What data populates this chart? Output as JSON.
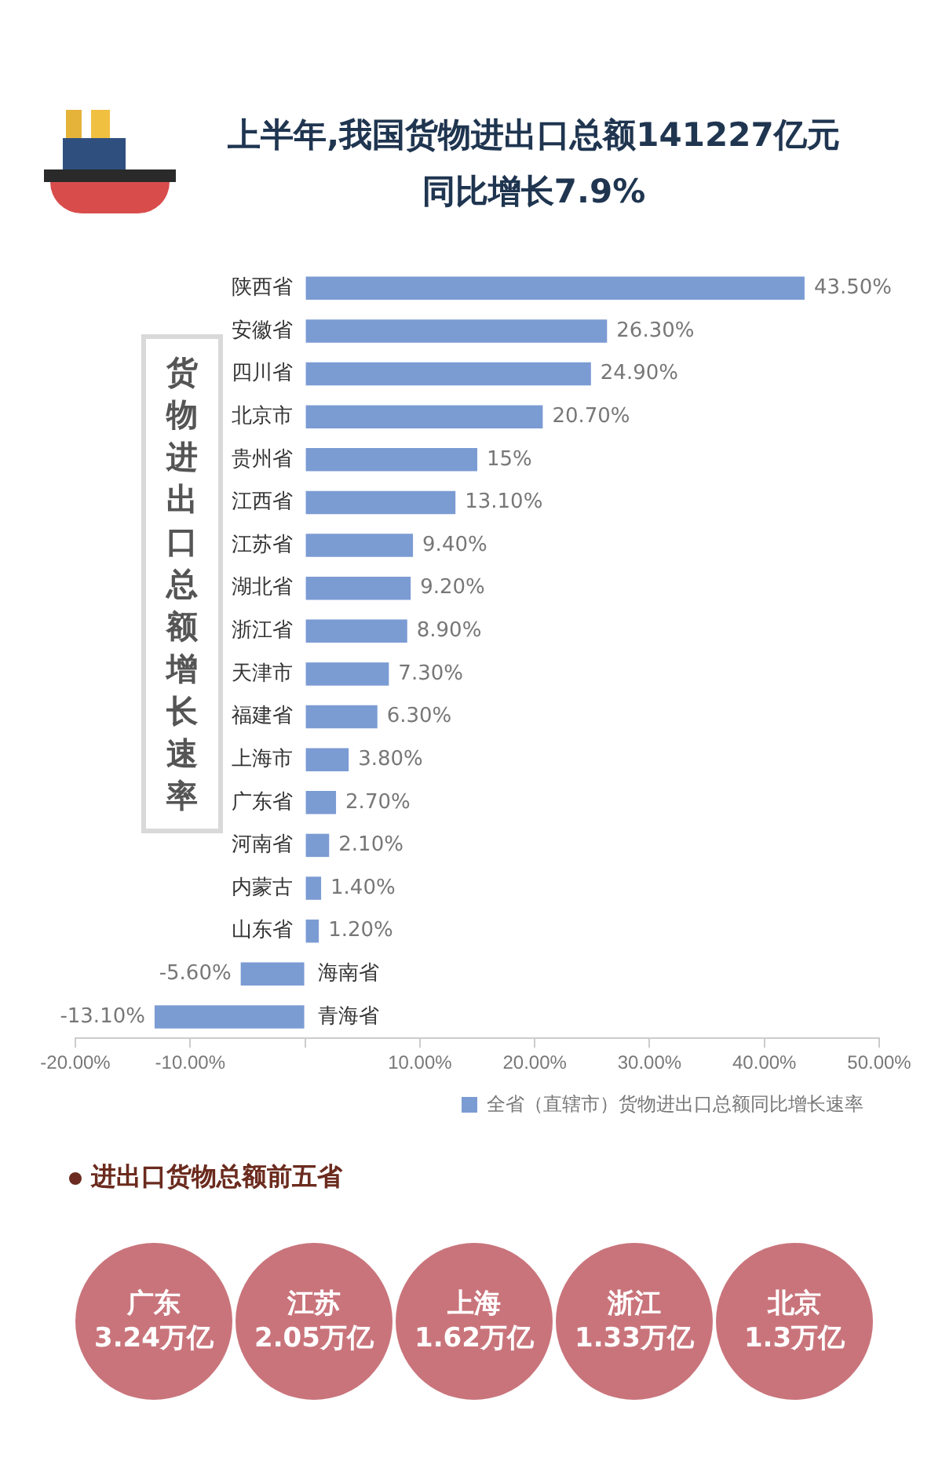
{
  "chart_data": [
    {
      "type": "bar",
      "title": "上半年,我国货物进出口总额141227亿元同比增长7.9%",
      "ylabel": "货物进出口总额增长速率",
      "orientation": "horizontal",
      "categories": [
        "陕西省",
        "安徽省",
        "四川省",
        "北京市",
        "贵州省",
        "江西省",
        "江苏省",
        "湖北省",
        "浙江省",
        "天津市",
        "福建省",
        "上海市",
        "广东省",
        "河南省",
        "内蒙古",
        "山东省",
        "海南省",
        "青海省"
      ],
      "series": [
        {
          "name": "全省（直辖市）货物进出口总额同比增长速率",
          "color": "#7b9bd3",
          "values": [
            43.5,
            26.3,
            24.9,
            20.7,
            15,
            13.1,
            9.4,
            9.2,
            8.9,
            7.3,
            6.3,
            3.8,
            2.7,
            2.1,
            1.4,
            1.2,
            -5.6,
            -13.1
          ],
          "value_labels": [
            "43.50%",
            "26.30%",
            "24.90%",
            "20.70%",
            "15%",
            "13.10%",
            "9.40%",
            "9.20%",
            "8.90%",
            "7.30%",
            "6.30%",
            "3.80%",
            "2.70%",
            "2.10%",
            "1.40%",
            "1.20%",
            "-5.60%",
            "-13.10%"
          ]
        }
      ],
      "xlim": [
        -20,
        50
      ],
      "xticks": [
        {
          "value": -20,
          "label": "-20.00%"
        },
        {
          "value": -10,
          "label": "-10.00%"
        },
        {
          "value": 0,
          "label": null
        },
        {
          "value": 10,
          "label": "10.00%"
        },
        {
          "value": 20,
          "label": "20.00%"
        },
        {
          "value": 30,
          "label": "30.00%"
        },
        {
          "value": 40,
          "label": "40.00%"
        },
        {
          "value": 50,
          "label": "50.00%"
        }
      ],
      "grid": false,
      "legend": "bottom right"
    },
    {
      "type": "other",
      "title": "进出口货物总额前五省",
      "categories": [
        "广东",
        "江苏",
        "上海",
        "浙江",
        "北京"
      ],
      "values": [
        3.24,
        2.05,
        1.62,
        1.33,
        1.3
      ],
      "value_labels": [
        "3.24万亿",
        "2.05万亿",
        "1.62万亿",
        "1.33万亿",
        "1.3万亿"
      ],
      "color": "#c9747b"
    }
  ]
}
